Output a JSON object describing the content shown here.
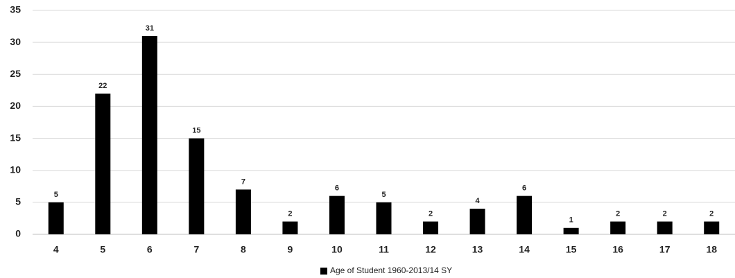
{
  "chart_data": {
    "type": "bar",
    "categories": [
      "4",
      "5",
      "6",
      "7",
      "8",
      "9",
      "10",
      "11",
      "12",
      "13",
      "14",
      "15",
      "16",
      "17",
      "18"
    ],
    "series": [
      {
        "name": "Age of Student 1960-2013/14 SY",
        "color": "#000000",
        "values": [
          5,
          22,
          31,
          15,
          7,
          2,
          6,
          5,
          2,
          4,
          6,
          1,
          2,
          2,
          2
        ]
      }
    ],
    "ylim": [
      0,
      35
    ],
    "yticks": [
      0,
      5,
      10,
      15,
      20,
      25,
      30,
      35
    ],
    "grid": true,
    "legend": "bottom",
    "data_labels": true
  }
}
